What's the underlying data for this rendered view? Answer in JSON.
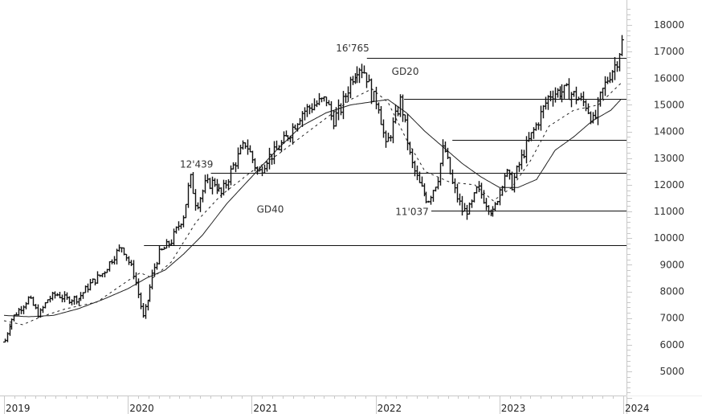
{
  "chart_data": {
    "type": "line",
    "subtype": "ohlc-bar",
    "title": "",
    "xlabel": "",
    "ylabel": "",
    "ylim": [
      4000,
      18700
    ],
    "yticks": [
      5000,
      6000,
      7000,
      8000,
      9000,
      10000,
      11000,
      12000,
      13000,
      14000,
      15000,
      16000,
      17000,
      18000
    ],
    "ytick_labels": [
      "5000",
      "6000",
      "7000",
      "8000",
      "9000",
      "10000",
      "11000",
      "12000",
      "13000",
      "14000",
      "15000",
      "16000",
      "17000",
      "18000"
    ],
    "xticks": [
      2019,
      2020,
      2021,
      2022,
      2023,
      2024
    ],
    "xtick_labels": [
      "2019",
      "2020",
      "2021",
      "2022",
      "2023",
      "2024"
    ],
    "grid": false,
    "legend": null,
    "price_path": {
      "x": [
        2019.0,
        2019.05,
        2019.12,
        2019.2,
        2019.28,
        2019.35,
        2019.42,
        2019.5,
        2019.6,
        2019.7,
        2019.8,
        2019.88,
        2019.95,
        2020.05,
        2020.12,
        2020.15,
        2020.2,
        2020.25,
        2020.35,
        2020.45,
        2020.5,
        2020.55,
        2020.62,
        2020.7,
        2020.75,
        2020.85,
        2020.95,
        2021.05,
        2021.12,
        2021.18,
        2021.3,
        2021.4,
        2021.5,
        2021.6,
        2021.65,
        2021.72,
        2021.8,
        2021.86,
        2021.92,
        2021.97,
        2022.02,
        2022.08,
        2022.15,
        2022.2,
        2022.28,
        2022.35,
        2022.42,
        2022.5,
        2022.55,
        2022.62,
        2022.7,
        2022.76,
        2022.82,
        2022.88,
        2022.95,
        2023.0,
        2023.05,
        2023.1,
        2023.2,
        2023.3,
        2023.4,
        2023.48,
        2023.55,
        2023.62,
        2023.7,
        2023.76,
        2023.82,
        2023.88,
        2023.94,
        2023.98,
        2024.0
      ],
      "close": [
        6100,
        6900,
        7300,
        7750,
        7100,
        7700,
        7900,
        7700,
        7750,
        8300,
        8700,
        9300,
        9700,
        8600,
        7000,
        7500,
        8700,
        9400,
        9900,
        10900,
        12300,
        11200,
        12000,
        12100,
        11600,
        12700,
        13600,
        12400,
        13000,
        13200,
        13900,
        14700,
        15000,
        15200,
        14400,
        14900,
        16000,
        16500,
        16200,
        15300,
        15100,
        13400,
        14400,
        15200,
        12900,
        12000,
        11400,
        12200,
        13500,
        12000,
        11000,
        11100,
        11900,
        11400,
        10900,
        11800,
        12500,
        12000,
        13300,
        14300,
        15400,
        15500,
        15500,
        15300,
        15000,
        14300,
        15400,
        16100,
        16600,
        17300,
        17500
      ]
    },
    "moving_averages": [
      {
        "name": "GD20",
        "style": "dashed",
        "x": [
          2019.0,
          2019.15,
          2019.3,
          2019.5,
          2019.75,
          2020.0,
          2020.1,
          2020.2,
          2020.35,
          2020.55,
          2020.75,
          2021.0,
          2021.2,
          2021.4,
          2021.6,
          2021.8,
          2021.97,
          2022.1,
          2022.25,
          2022.4,
          2022.6,
          2022.8,
          2022.95,
          2023.1,
          2023.25,
          2023.4,
          2023.6,
          2023.8,
          2024.0
        ],
        "values": [
          6900,
          6750,
          7050,
          7350,
          7600,
          8400,
          8700,
          8500,
          9100,
          10600,
          11600,
          12500,
          13100,
          13800,
          14500,
          15200,
          15600,
          15100,
          13700,
          12500,
          12100,
          12000,
          11400,
          11900,
          12900,
          14200,
          14800,
          15000,
          15900
        ]
      },
      {
        "name": "GD40",
        "style": "solid",
        "x": [
          2019.0,
          2019.2,
          2019.4,
          2019.6,
          2019.8,
          2020.0,
          2020.15,
          2020.3,
          2020.45,
          2020.6,
          2020.8,
          2021.0,
          2021.2,
          2021.4,
          2021.6,
          2021.8,
          2021.95,
          2022.1,
          2022.25,
          2022.4,
          2022.55,
          2022.7,
          2022.85,
          2023.0,
          2023.15,
          2023.3,
          2023.45,
          2023.6,
          2023.75,
          2023.9,
          2024.0
        ],
        "values": [
          7100,
          7050,
          7100,
          7350,
          7700,
          8100,
          8500,
          8800,
          9400,
          10100,
          11300,
          12300,
          13300,
          14200,
          14700,
          15000,
          15100,
          15200,
          14700,
          14000,
          13400,
          12800,
          12300,
          11900,
          11900,
          12200,
          13300,
          13800,
          14400,
          14800,
          15300
        ]
      }
    ],
    "horizontal_levels": [
      {
        "value": 16765,
        "label": "16'765",
        "x_start": 2021.93
      },
      {
        "value": 15230,
        "label": "",
        "x_start": 2022.23
      },
      {
        "value": 13700,
        "label": "",
        "x_start": 2022.62
      },
      {
        "value": 12439,
        "label": "12'439",
        "x_start": 2020.67
      },
      {
        "value": 11037,
        "label": "11'037",
        "x_start": 2022.45
      },
      {
        "value": 9740,
        "label": "",
        "x_start": 2020.13
      }
    ],
    "annotations": [
      {
        "text": "16'765",
        "x": 2021.68,
        "y": 17000
      },
      {
        "text": "GD20",
        "x": 2022.13,
        "y": 16130
      },
      {
        "text": "12'439",
        "x": 2020.42,
        "y": 12650
      },
      {
        "text": "GD40",
        "x": 2021.04,
        "y": 10950
      },
      {
        "text": "11'037",
        "x": 2022.16,
        "y": 10870
      }
    ]
  },
  "axes": {
    "colors": {
      "axis": "#c8c8c8",
      "price": "#111111",
      "ma": "#222222",
      "level": "#111111",
      "label": "#333333"
    }
  }
}
